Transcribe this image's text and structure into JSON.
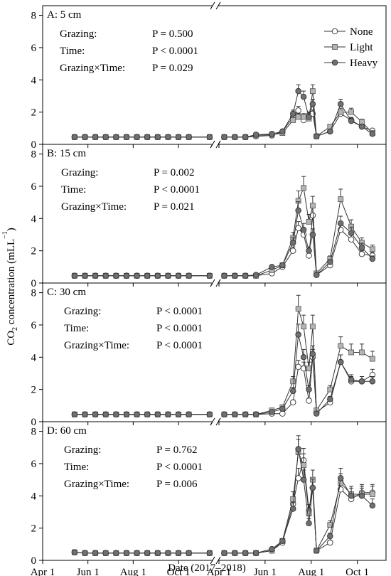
{
  "figure": {
    "xlabel": "Date (2017–2018)",
    "ylabel_prefix": "CO",
    "ylabel_sub": "2",
    "ylabel_mid": " concentration (mLL",
    "ylabel_sup": "−1",
    "ylabel_end": ")",
    "xticks": [
      "Apr 1",
      "Jun 1",
      "Aug 1",
      "Oct 1",
      "Apr 1",
      "Jun 1",
      "Aug 1",
      "Oct 1"
    ],
    "yticks": [
      "0",
      "2",
      "4",
      "6",
      "8"
    ]
  },
  "legend": [
    {
      "name": "None",
      "marker": "circle",
      "fill": "#ffffff"
    },
    {
      "name": "Light",
      "marker": "square",
      "fill": "#b4b4b4"
    },
    {
      "name": "Heavy",
      "marker": "circle",
      "fill": "#707070"
    }
  ],
  "chart_data": [
    {
      "type": "line",
      "title": "A: 5 cm",
      "ylim": [
        0,
        8.6
      ],
      "stats": [
        {
          "label": "Grazing:",
          "p": "P = 0.500"
        },
        {
          "label": "Time:",
          "p": "P < 0.0001"
        },
        {
          "label": "Grazing×Time:",
          "p": "P = 0.029"
        }
      ],
      "x": [
        "2017-05-14",
        "2017-05-28",
        "2017-06-11",
        "2017-06-25",
        "2017-07-09",
        "2017-07-23",
        "2017-08-06",
        "2017-08-20",
        "2017-09-03",
        "2017-09-17",
        "2017-10-01",
        "2017-10-15",
        "2017-11-12",
        "2018-04-08",
        "2018-04-22",
        "2018-05-06",
        "2018-05-20",
        "2018-06-10",
        "2018-06-24",
        "2018-07-08",
        "2018-07-15",
        "2018-07-22",
        "2018-07-29",
        "2018-08-03",
        "2018-08-08",
        "2018-08-26",
        "2018-09-09",
        "2018-09-23",
        "2018-10-07",
        "2018-10-21"
      ],
      "series": [
        {
          "name": "None",
          "values": [
            0.45,
            0.45,
            0.45,
            0.45,
            0.45,
            0.45,
            0.45,
            0.45,
            0.45,
            0.45,
            0.45,
            0.45,
            0.45,
            0.45,
            0.45,
            0.45,
            0.5,
            0.55,
            0.8,
            1.7,
            2.1,
            1.5,
            1.8,
            1.9,
            0.5,
            0.8,
            1.9,
            1.5,
            1.1,
            0.85
          ]
        },
        {
          "name": "Light",
          "values": [
            0.45,
            0.45,
            0.45,
            0.45,
            0.45,
            0.45,
            0.45,
            0.45,
            0.45,
            0.45,
            0.45,
            0.45,
            0.45,
            0.45,
            0.45,
            0.45,
            0.55,
            0.6,
            0.7,
            1.5,
            1.7,
            1.7,
            1.6,
            3.3,
            0.5,
            1.1,
            2.0,
            2.0,
            1.4,
            0.7
          ]
        },
        {
          "name": "Heavy",
          "values": [
            0.45,
            0.45,
            0.45,
            0.45,
            0.45,
            0.45,
            0.45,
            0.45,
            0.45,
            0.45,
            0.45,
            0.45,
            0.45,
            0.45,
            0.45,
            0.45,
            0.6,
            0.65,
            0.8,
            1.9,
            3.3,
            2.95,
            1.7,
            2.5,
            0.5,
            0.8,
            2.5,
            1.45,
            1.1,
            0.65
          ]
        }
      ]
    },
    {
      "type": "line",
      "title": "B: 15 cm",
      "ylim": [
        0,
        8.6
      ],
      "stats": [
        {
          "label": "Grazing:",
          "p": "P = 0.002"
        },
        {
          "label": "Time:",
          "p": "P < 0.0001"
        },
        {
          "label": "Grazing×Time:",
          "p": "P = 0.021"
        }
      ],
      "x": [
        "2017-05-14",
        "2017-05-28",
        "2017-06-11",
        "2017-06-25",
        "2017-07-09",
        "2017-07-23",
        "2017-08-06",
        "2017-08-20",
        "2017-09-03",
        "2017-09-17",
        "2017-10-01",
        "2017-10-15",
        "2017-11-12",
        "2018-04-08",
        "2018-04-22",
        "2018-05-06",
        "2018-05-20",
        "2018-06-10",
        "2018-06-24",
        "2018-07-08",
        "2018-07-15",
        "2018-07-22",
        "2018-07-29",
        "2018-08-03",
        "2018-08-08",
        "2018-08-26",
        "2018-09-09",
        "2018-09-23",
        "2018-10-07",
        "2018-10-21"
      ],
      "series": [
        {
          "name": "None",
          "values": [
            0.45,
            0.45,
            0.45,
            0.45,
            0.45,
            0.45,
            0.45,
            0.45,
            0.45,
            0.45,
            0.45,
            0.45,
            0.45,
            0.45,
            0.45,
            0.45,
            0.45,
            0.6,
            1.0,
            2.0,
            3.4,
            3.0,
            1.7,
            4.2,
            0.5,
            1.1,
            3.3,
            2.7,
            1.8,
            1.7
          ]
        },
        {
          "name": "Light",
          "values": [
            0.45,
            0.45,
            0.45,
            0.45,
            0.45,
            0.45,
            0.45,
            0.45,
            0.45,
            0.45,
            0.45,
            0.45,
            0.45,
            0.45,
            0.45,
            0.45,
            0.45,
            0.8,
            1.1,
            2.8,
            5.1,
            5.9,
            3.8,
            4.8,
            0.6,
            1.5,
            5.2,
            3.5,
            2.5,
            2.1
          ]
        },
        {
          "name": "Heavy",
          "values": [
            0.45,
            0.45,
            0.45,
            0.45,
            0.45,
            0.45,
            0.45,
            0.45,
            0.45,
            0.45,
            0.45,
            0.45,
            0.45,
            0.45,
            0.45,
            0.45,
            0.5,
            1.0,
            1.1,
            2.5,
            4.5,
            3.3,
            2.0,
            3.0,
            0.5,
            1.3,
            3.7,
            3.1,
            2.2,
            1.5
          ]
        }
      ]
    },
    {
      "type": "line",
      "title": "C: 30 cm",
      "ylim": [
        0,
        8.6
      ],
      "stats": [
        {
          "label": "Grazing:",
          "p": "P < 0.0001"
        },
        {
          "label": "Time:",
          "p": "P < 0.0001"
        },
        {
          "label": "Grazing×Time:",
          "p": "P < 0.0001"
        }
      ],
      "x": [
        "2017-05-14",
        "2017-05-28",
        "2017-06-11",
        "2017-06-25",
        "2017-07-09",
        "2017-07-23",
        "2017-08-06",
        "2017-08-20",
        "2017-09-03",
        "2017-09-17",
        "2017-10-01",
        "2017-10-15",
        "2017-11-12",
        "2018-04-08",
        "2018-04-22",
        "2018-05-06",
        "2018-05-20",
        "2018-06-10",
        "2018-06-24",
        "2018-07-08",
        "2018-07-15",
        "2018-07-22",
        "2018-07-29",
        "2018-08-03",
        "2018-08-08",
        "2018-08-26",
        "2018-09-09",
        "2018-09-23",
        "2018-10-07",
        "2018-10-21"
      ],
      "series": [
        {
          "name": "None",
          "values": [
            0.45,
            0.45,
            0.45,
            0.45,
            0.45,
            0.45,
            0.45,
            0.45,
            0.45,
            0.45,
            0.45,
            0.45,
            0.45,
            0.45,
            0.45,
            0.45,
            0.45,
            0.5,
            0.5,
            1.2,
            3.4,
            3.3,
            1.3,
            4.0,
            0.6,
            1.2,
            3.7,
            2.5,
            2.5,
            2.9
          ]
        },
        {
          "name": "Light",
          "values": [
            0.45,
            0.45,
            0.45,
            0.45,
            0.45,
            0.45,
            0.45,
            0.45,
            0.45,
            0.45,
            0.45,
            0.45,
            0.45,
            0.45,
            0.45,
            0.45,
            0.45,
            0.7,
            0.9,
            2.5,
            7.0,
            5.9,
            3.3,
            5.9,
            0.7,
            2.0,
            4.7,
            4.3,
            4.3,
            3.9
          ]
        },
        {
          "name": "Heavy",
          "values": [
            0.45,
            0.45,
            0.45,
            0.45,
            0.45,
            0.45,
            0.45,
            0.45,
            0.45,
            0.45,
            0.45,
            0.45,
            0.45,
            0.45,
            0.45,
            0.45,
            0.45,
            0.6,
            0.8,
            1.9,
            5.4,
            4.0,
            2.0,
            4.2,
            0.5,
            1.4,
            3.7,
            2.6,
            2.5,
            2.5
          ]
        }
      ]
    },
    {
      "type": "line",
      "title": "D: 60 cm",
      "ylim": [
        0,
        8.6
      ],
      "stats": [
        {
          "label": "Grazing:",
          "p": "P = 0.762"
        },
        {
          "label": "Time:",
          "p": "P < 0.0001"
        },
        {
          "label": "Grazing×Time:",
          "p": "P = 0.006"
        }
      ],
      "x": [
        "2017-05-14",
        "2017-05-28",
        "2017-06-11",
        "2017-06-25",
        "2017-07-09",
        "2017-07-23",
        "2017-08-06",
        "2017-08-20",
        "2017-09-03",
        "2017-09-17",
        "2017-10-01",
        "2017-10-15",
        "2017-11-12",
        "2018-04-08",
        "2018-04-22",
        "2018-05-06",
        "2018-05-20",
        "2018-06-10",
        "2018-06-24",
        "2018-07-08",
        "2018-07-15",
        "2018-07-22",
        "2018-07-29",
        "2018-08-03",
        "2018-08-08",
        "2018-08-26",
        "2018-09-09",
        "2018-09-23",
        "2018-10-07",
        "2018-10-21"
      ],
      "series": [
        {
          "name": "None",
          "values": [
            0.5,
            0.45,
            0.45,
            0.45,
            0.45,
            0.45,
            0.45,
            0.45,
            0.45,
            0.45,
            0.45,
            0.45,
            0.45,
            0.45,
            0.45,
            0.45,
            0.45,
            0.6,
            1.1,
            3.5,
            5.1,
            6.2,
            3.1,
            4.5,
            0.6,
            1.1,
            4.4,
            3.8,
            4.2,
            4.2
          ]
        },
        {
          "name": "Light",
          "values": [
            0.5,
            0.45,
            0.45,
            0.45,
            0.45,
            0.45,
            0.45,
            0.45,
            0.45,
            0.45,
            0.45,
            0.45,
            0.45,
            0.45,
            0.45,
            0.45,
            0.45,
            0.6,
            1.2,
            3.8,
            6.7,
            5.9,
            2.9,
            5.0,
            0.6,
            2.2,
            4.8,
            4.1,
            4.1,
            4.1
          ]
        },
        {
          "name": "Heavy",
          "values": [
            0.5,
            0.45,
            0.45,
            0.45,
            0.45,
            0.45,
            0.45,
            0.45,
            0.45,
            0.45,
            0.45,
            0.45,
            0.45,
            0.45,
            0.45,
            0.45,
            0.45,
            0.7,
            1.2,
            3.2,
            6.9,
            5.0,
            2.3,
            4.5,
            0.6,
            1.5,
            5.1,
            4.0,
            4.0,
            3.4
          ]
        }
      ]
    }
  ]
}
